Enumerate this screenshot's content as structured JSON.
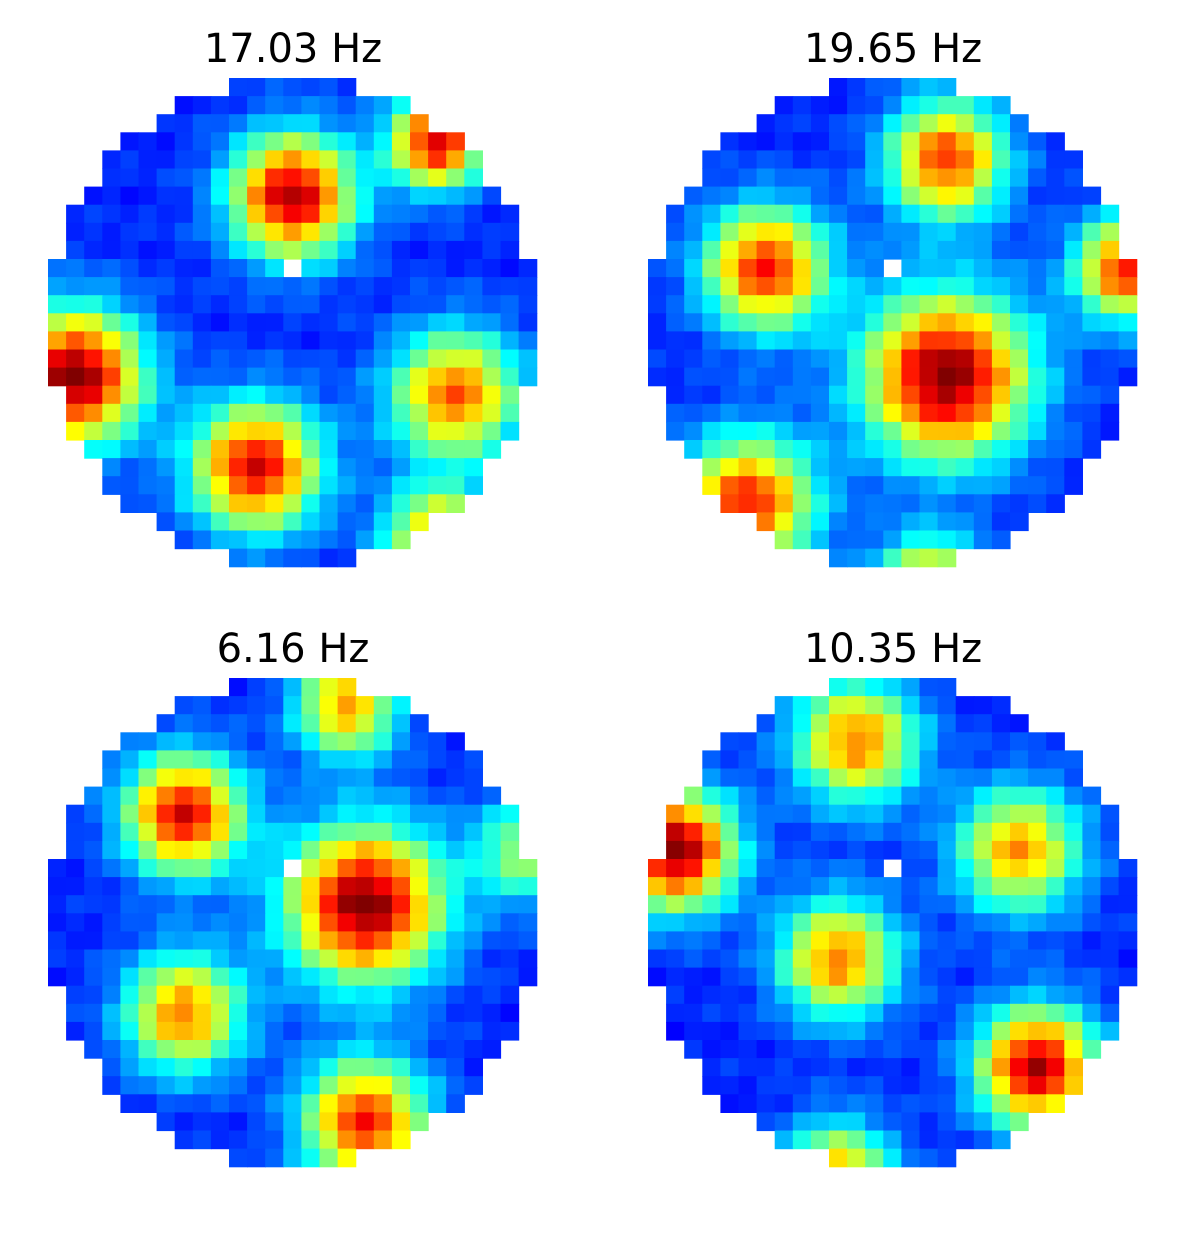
{
  "chart_data": [
    {
      "type": "heatmap",
      "title": "17.03 Hz",
      "colormap": "jet",
      "grid": false,
      "axes_visible": false,
      "mask": "circle",
      "nan_cells": [
        [
          10,
          13
        ]
      ],
      "grid_size": [
        27,
        27
      ],
      "peaks": [
        {
          "row": 6,
          "col": 13,
          "value": 0.95,
          "sigma": 2.4
        },
        {
          "row": 16,
          "col": 1,
          "value": 1.0,
          "sigma": 2.6
        },
        {
          "row": 17,
          "col": 22,
          "value": 0.78,
          "sigma": 2.5
        },
        {
          "row": 21,
          "col": 11,
          "value": 0.9,
          "sigma": 2.5
        },
        {
          "row": 3,
          "col": 21,
          "value": 0.92,
          "sigma": 1.8
        },
        {
          "row": 25,
          "col": 21,
          "value": 0.75,
          "sigma": 2.0
        }
      ]
    },
    {
      "type": "heatmap",
      "title": "19.65 Hz",
      "colormap": "jet",
      "grid": false,
      "axes_visible": false,
      "mask": "circle",
      "nan_cells": [
        [
          10,
          13
        ]
      ],
      "grid_size": [
        27,
        27
      ],
      "peaks": [
        {
          "row": 4,
          "col": 16,
          "value": 0.82,
          "sigma": 2.3
        },
        {
          "row": 10,
          "col": 6,
          "value": 0.85,
          "sigma": 2.4
        },
        {
          "row": 16,
          "col": 16,
          "value": 1.0,
          "sigma": 3.2
        },
        {
          "row": 10,
          "col": 26,
          "value": 0.85,
          "sigma": 2.0
        },
        {
          "row": 23,
          "col": 5,
          "value": 0.85,
          "sigma": 2.6
        },
        {
          "row": 28,
          "col": 15,
          "value": 0.85,
          "sigma": 2.0
        }
      ]
    },
    {
      "type": "heatmap",
      "title": "6.16 Hz",
      "colormap": "jet",
      "grid": false,
      "axes_visible": false,
      "mask": "circle",
      "nan_cells": [
        [
          10,
          13
        ]
      ],
      "grid_size": [
        27,
        27
      ],
      "peaks": [
        {
          "row": 7,
          "col": 7,
          "value": 0.9,
          "sigma": 2.3
        },
        {
          "row": 12,
          "col": 17,
          "value": 1.0,
          "sigma": 3.0
        },
        {
          "row": 18,
          "col": 7,
          "value": 0.75,
          "sigma": 2.3
        },
        {
          "row": 24,
          "col": 17,
          "value": 0.85,
          "sigma": 2.4
        },
        {
          "row": 1,
          "col": 16,
          "value": 0.72,
          "sigma": 2.0
        },
        {
          "row": 9,
          "col": 26,
          "value": 0.55,
          "sigma": 2.0
        }
      ]
    },
    {
      "type": "heatmap",
      "title": "10.35 Hz",
      "colormap": "jet",
      "grid": false,
      "axes_visible": false,
      "mask": "circle",
      "nan_cells": [
        [
          10,
          13
        ]
      ],
      "grid_size": [
        27,
        27
      ],
      "peaks": [
        {
          "row": 3,
          "col": 11,
          "value": 0.75,
          "sigma": 2.4
        },
        {
          "row": 9,
          "col": 1,
          "value": 1.0,
          "sigma": 2.3
        },
        {
          "row": 9,
          "col": 20,
          "value": 0.72,
          "sigma": 2.4
        },
        {
          "row": 15,
          "col": 10,
          "value": 0.75,
          "sigma": 2.3
        },
        {
          "row": 21,
          "col": 21,
          "value": 0.95,
          "sigma": 2.3
        },
        {
          "row": 27,
          "col": 10,
          "value": 0.7,
          "sigma": 2.1
        }
      ]
    }
  ]
}
